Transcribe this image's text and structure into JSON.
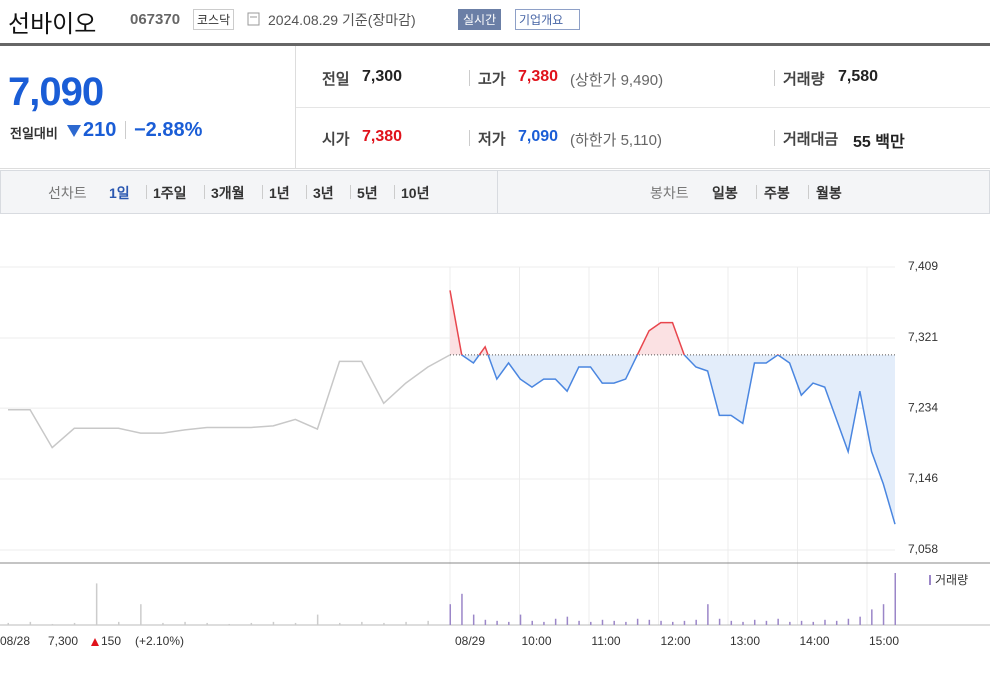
{
  "header": {
    "name": "선바이오",
    "code": "067370",
    "market": "코스닥",
    "date": "2024.08.29 기준(장마감)",
    "realtime": "실시간",
    "company": "기업개요"
  },
  "price": {
    "current": "7,090",
    "change_label": "전일대비",
    "change": "210",
    "rate": "−2.88%"
  },
  "info": [
    {
      "label": "전일",
      "value": "7,300"
    },
    {
      "label": "고가",
      "value": "7,380",
      "note": "(상한가 9,490)"
    },
    {
      "label": "거래량",
      "value": "7,580"
    },
    {
      "label": "시가",
      "value": "7,380"
    },
    {
      "label": "저가",
      "value": "7,090",
      "note": "(하한가 5,110)"
    },
    {
      "label": "거래대금",
      "value": "55 백만"
    }
  ],
  "tabs": {
    "line_label": "선차트",
    "line": [
      "1일",
      "1주일",
      "3개월",
      "1년",
      "3년",
      "5년",
      "10년"
    ],
    "candle_label": "봉차트",
    "candle": [
      "일봉",
      "주봉",
      "월봉"
    ]
  },
  "chart": {
    "type": "line",
    "ylim": [
      7058,
      7409
    ],
    "yticks": [
      {
        "value": 7409,
        "label": "7,409"
      },
      {
        "value": 7321,
        "label": "7,321"
      },
      {
        "value": 7234,
        "label": "7,234"
      },
      {
        "value": 7146,
        "label": "7,146"
      },
      {
        "value": 7058,
        "label": "7,058"
      }
    ],
    "baseline": 7300,
    "previous": {
      "date": "08/28",
      "close": "7,300",
      "change": "150",
      "rate": "(+2.10%)",
      "color": "#c8c8c8",
      "values": [
        7232,
        7232,
        7185,
        7209,
        7209,
        7209,
        7203,
        7203,
        7207,
        7210,
        7210,
        7210,
        7212,
        7220,
        7208,
        7292,
        7292,
        7240,
        7265,
        7285,
        7300
      ],
      "volume": [
        2,
        3,
        1,
        2,
        40,
        3,
        20,
        2,
        3,
        2,
        1,
        2,
        3,
        2,
        10,
        2,
        3,
        2,
        3,
        4,
        15
      ]
    },
    "today": {
      "date": "08/29",
      "up_color": "#e8464d",
      "down_color": "#4a86e0",
      "values": [
        7380,
        7300,
        7290,
        7310,
        7270,
        7290,
        7270,
        7260,
        7270,
        7270,
        7255,
        7285,
        7285,
        7265,
        7265,
        7270,
        7300,
        7330,
        7340,
        7340,
        7300,
        7285,
        7280,
        7225,
        7225,
        7215,
        7290,
        7290,
        7300,
        7290,
        7250,
        7265,
        7260,
        7220,
        7180,
        7255,
        7180,
        7140,
        7090
      ],
      "volume": [
        20,
        30,
        10,
        5,
        4,
        3,
        10,
        4,
        3,
        6,
        8,
        4,
        3,
        5,
        4,
        3,
        6,
        5,
        4,
        3,
        4,
        5,
        20,
        6,
        4,
        3,
        5,
        4,
        6,
        3,
        4,
        3,
        5,
        4,
        6,
        8,
        15,
        20,
        50
      ]
    },
    "xticks": [
      "10:00",
      "11:00",
      "12:00",
      "13:00",
      "14:00",
      "15:00"
    ],
    "volume_label": "거래량",
    "volume_ylim": [
      0,
      50
    ]
  }
}
